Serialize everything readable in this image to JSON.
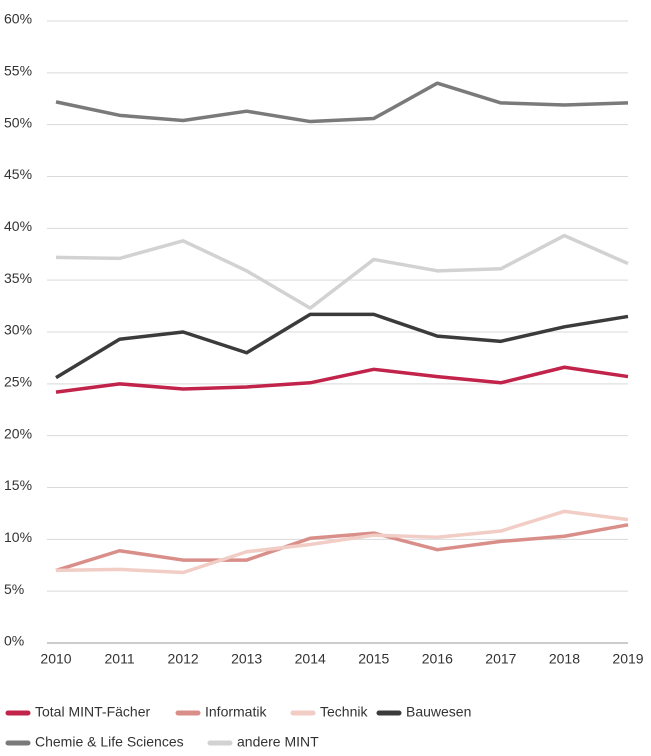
{
  "chart_data": {
    "type": "line",
    "categories": [
      "2010",
      "2011",
      "2012",
      "2013",
      "2014",
      "2015",
      "2016",
      "2017",
      "2018",
      "2019"
    ],
    "series": [
      {
        "name": "Total MINT-Fächer",
        "color": "#c1234a",
        "values": [
          24.2,
          25.0,
          24.5,
          24.7,
          25.1,
          26.4,
          25.7,
          25.1,
          26.6,
          25.7
        ]
      },
      {
        "name": "Informatik",
        "color": "#d98e89",
        "values": [
          7.0,
          8.9,
          8.0,
          8.0,
          10.1,
          10.6,
          9.0,
          9.8,
          10.3,
          11.4
        ]
      },
      {
        "name": "Technik",
        "color": "#f1cdc6",
        "values": [
          7.0,
          7.1,
          6.8,
          8.8,
          9.5,
          10.4,
          10.2,
          10.8,
          12.7,
          11.9
        ]
      },
      {
        "name": "Bauwesen",
        "color": "#3b3b3b",
        "values": [
          25.6,
          29.3,
          30.0,
          28.0,
          31.7,
          31.7,
          29.6,
          29.1,
          30.5,
          31.5
        ]
      },
      {
        "name": "Chemie & Life Sciences",
        "color": "#7a7a7a",
        "values": [
          52.2,
          50.9,
          50.4,
          51.3,
          50.3,
          50.6,
          54.0,
          52.1,
          51.9,
          52.1
        ]
      },
      {
        "name": "andere MINT",
        "color": "#d2d2d2",
        "values": [
          37.2,
          37.1,
          38.8,
          35.9,
          32.3,
          37.0,
          35.9,
          36.1,
          39.3,
          36.6
        ]
      }
    ],
    "ylim": [
      0,
      60
    ],
    "yticks": [
      {
        "value": 0,
        "label": "0%"
      },
      {
        "value": 5,
        "label": "5%"
      },
      {
        "value": 10,
        "label": "10%"
      },
      {
        "value": 15,
        "label": "15%"
      },
      {
        "value": 20,
        "label": "20%"
      },
      {
        "value": 25,
        "label": "25%"
      },
      {
        "value": 30,
        "label": "30%"
      },
      {
        "value": 35,
        "label": "35%"
      },
      {
        "value": 40,
        "label": "40%"
      },
      {
        "value": 45,
        "label": "45%"
      },
      {
        "value": 50,
        "label": "50%"
      },
      {
        "value": 55,
        "label": "55%"
      },
      {
        "value": 60,
        "label": "60%"
      }
    ],
    "grid": true
  }
}
